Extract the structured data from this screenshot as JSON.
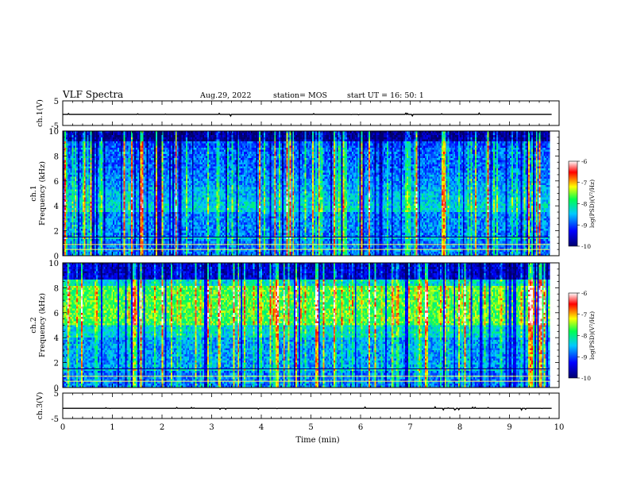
{
  "header": {
    "title": "VLF Spectra",
    "date": "Aug.29, 2022",
    "station": "station= MOS",
    "start": "start  UT =   16: 50: 1"
  },
  "chart_data": [
    {
      "type": "line",
      "panel": "ch1_waveform",
      "ylabel": "ch.1(V)",
      "ylim": [
        -5,
        5
      ],
      "yticks": [
        "5",
        "-5"
      ],
      "xlim": [
        0,
        10
      ],
      "series_level": -0.5
    },
    {
      "type": "heatmap",
      "panel": "ch1_spectrogram",
      "ylabel": "ch.1\nFrequency (kHz)",
      "ylim": [
        0,
        10
      ],
      "yticks": [
        "0",
        "2",
        "4",
        "6",
        "8",
        "10"
      ],
      "xlim": [
        0,
        10
      ],
      "colorbar": {
        "label": "log(PSD)(V²/Hz)",
        "range": [
          -10,
          -6
        ],
        "ticks": [
          "-6",
          "-7",
          "-8",
          "-9",
          "-10"
        ]
      }
    },
    {
      "type": "heatmap",
      "panel": "ch2_spectrogram",
      "ylabel": "ch.2\nFrequency (kHz)",
      "ylim": [
        0,
        10
      ],
      "yticks": [
        "0",
        "2",
        "4",
        "6",
        "8",
        "10"
      ],
      "xlim": [
        0,
        10
      ],
      "colorbar": {
        "label": "log(PSD)(V²/Hz)",
        "range": [
          -10,
          -6
        ],
        "ticks": [
          "-6",
          "-7",
          "-8",
          "-9",
          "-10"
        ]
      }
    },
    {
      "type": "line",
      "panel": "ch3_waveform",
      "ylabel": "ch.3(V)",
      "ylim": [
        -5,
        5
      ],
      "yticks": [
        "5",
        "-5"
      ],
      "xlim": [
        0,
        10
      ],
      "series_level": -1.0
    }
  ],
  "xaxis": {
    "label": "Time  (min)",
    "ticks": [
      "0",
      "1",
      "2",
      "3",
      "4",
      "5",
      "6",
      "7",
      "8",
      "9",
      "10"
    ]
  },
  "colors": {
    "colormap": [
      "#00006e",
      "#0000ff",
      "#00c8ff",
      "#00ff50",
      "#ffff00",
      "#ff0000",
      "#ffffff"
    ]
  }
}
